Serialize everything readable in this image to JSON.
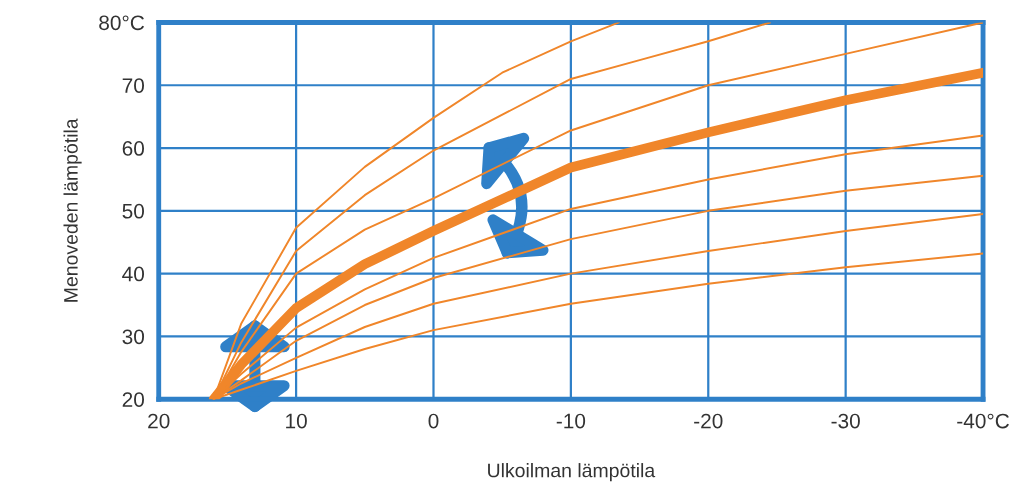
{
  "chart_data": {
    "type": "line",
    "xlabel": "Ulkoilman lämpötila",
    "ylabel": "Menoveden lämpötila",
    "xlim": [
      20,
      -40
    ],
    "ylim": [
      20,
      80
    ],
    "xticks": [
      20,
      10,
      0,
      -10,
      -20,
      -30,
      {
        "value": -40,
        "label": "-40°C"
      }
    ],
    "yticks": [
      20,
      30,
      40,
      50,
      60,
      70,
      {
        "value": 80,
        "label": "80°C"
      }
    ],
    "grid": true,
    "marker": "none",
    "line_style": "solid",
    "series": [
      {
        "color": "#f0862a",
        "x": [
          16,
          14,
          10,
          5,
          0,
          -5,
          -10,
          -13.5
        ],
        "values": [
          20,
          32,
          47.3,
          57,
          64.8,
          72,
          77,
          80
        ]
      },
      {
        "color": "#f0862a",
        "x": [
          16,
          14,
          10,
          5,
          0,
          -10,
          -15,
          -20,
          -24.5
        ],
        "values": [
          20,
          29,
          43.6,
          52.5,
          59.6,
          71,
          74,
          77,
          80
        ]
      },
      {
        "color": "#f0862a",
        "x": [
          16,
          14,
          10,
          5,
          0,
          -10,
          -20,
          -30,
          -40
        ],
        "values": [
          20,
          27.5,
          40,
          47,
          52,
          62.8,
          70,
          75,
          80
        ]
      },
      {
        "color": "#f0862a",
        "x": [
          16,
          14,
          10,
          5,
          0,
          -10,
          -20,
          -30,
          -40
        ],
        "values": [
          20,
          25.5,
          34.5,
          41.5,
          46.8,
          56.9,
          62.5,
          67.6,
          72
        ]
      },
      {
        "color": "#f0862a",
        "x": [
          16,
          14,
          10,
          5,
          0,
          -10,
          -20,
          -30,
          -40
        ],
        "values": [
          20,
          24,
          31.4,
          37.5,
          42.5,
          50.3,
          55,
          59,
          62
        ]
      },
      {
        "color": "#f0862a",
        "x": [
          16,
          14,
          10,
          5,
          0,
          -10,
          -20,
          -30,
          -40
        ],
        "values": [
          20,
          23,
          29.3,
          35,
          39.3,
          45.5,
          50,
          53.2,
          55.6
        ]
      },
      {
        "color": "#f0862a",
        "x": [
          16,
          14,
          10,
          5,
          0,
          -10,
          -20,
          -30,
          -40
        ],
        "values": [
          20,
          22.5,
          26.6,
          31.5,
          35.2,
          40,
          43.6,
          46.8,
          49.5
        ]
      },
      {
        "color": "#f0862a",
        "x": [
          16,
          14,
          10,
          5,
          0,
          -10,
          -20,
          -30,
          -40
        ],
        "values": [
          20,
          21.5,
          24.5,
          28,
          31,
          35.2,
          38.4,
          41,
          43.2
        ]
      }
    ]
  }
}
